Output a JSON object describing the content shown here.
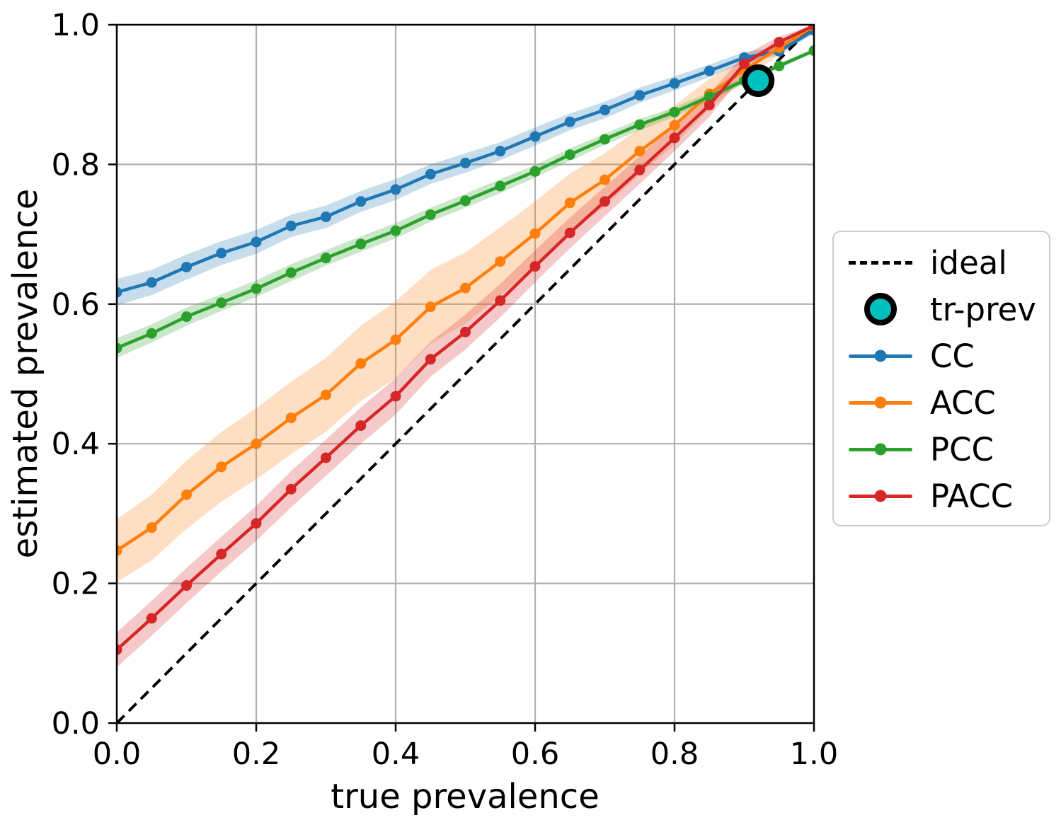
{
  "chart_data": {
    "type": "line",
    "title": "",
    "xlabel": "true prevalence",
    "ylabel": "estimated prevalence",
    "xlim": [
      0,
      1
    ],
    "ylim": [
      0,
      1
    ],
    "grid": true,
    "grid_color": "#b0b0b0",
    "xticks": [
      "0.0",
      "0.2",
      "0.4",
      "0.6",
      "0.8",
      "1.0"
    ],
    "yticks": [
      "0.0",
      "0.2",
      "0.4",
      "0.6",
      "0.8",
      "1.0"
    ],
    "x": [
      0.0,
      0.05,
      0.1,
      0.15,
      0.2,
      0.25,
      0.3,
      0.35,
      0.4,
      0.45,
      0.5,
      0.55,
      0.6,
      0.65,
      0.7,
      0.75,
      0.8,
      0.85,
      0.9,
      0.95,
      1.0
    ],
    "series": [
      {
        "name": "CC",
        "color": "#1f77b4",
        "values": [
          0.617,
          0.631,
          0.653,
          0.673,
          0.689,
          0.712,
          0.725,
          0.747,
          0.764,
          0.786,
          0.802,
          0.819,
          0.84,
          0.861,
          0.878,
          0.899,
          0.916,
          0.934,
          0.953,
          0.962,
          0.992
        ],
        "band": [
          0.019,
          0.018,
          0.018,
          0.017,
          0.017,
          0.016,
          0.016,
          0.015,
          0.015,
          0.014,
          0.014,
          0.013,
          0.013,
          0.012,
          0.012,
          0.011,
          0.01,
          0.009,
          0.008,
          0.006,
          0.004
        ]
      },
      {
        "name": "ACC",
        "color": "#ff7f0e",
        "values": [
          0.247,
          0.28,
          0.327,
          0.367,
          0.4,
          0.437,
          0.47,
          0.515,
          0.549,
          0.596,
          0.623,
          0.661,
          0.701,
          0.745,
          0.778,
          0.819,
          0.856,
          0.901,
          0.935,
          0.967,
          0.998
        ],
        "band": [
          0.045,
          0.047,
          0.049,
          0.05,
          0.051,
          0.052,
          0.053,
          0.054,
          0.055,
          0.053,
          0.051,
          0.049,
          0.046,
          0.042,
          0.038,
          0.033,
          0.028,
          0.022,
          0.015,
          0.009,
          0.003
        ]
      },
      {
        "name": "PCC",
        "color": "#2ca02c",
        "values": [
          0.537,
          0.558,
          0.582,
          0.602,
          0.622,
          0.645,
          0.666,
          0.686,
          0.705,
          0.728,
          0.748,
          0.769,
          0.79,
          0.814,
          0.836,
          0.857,
          0.875,
          0.897,
          0.92,
          0.941,
          0.963
        ],
        "band": [
          0.014,
          0.013,
          0.013,
          0.012,
          0.012,
          0.012,
          0.011,
          0.011,
          0.011,
          0.01,
          0.01,
          0.01,
          0.009,
          0.009,
          0.008,
          0.008,
          0.007,
          0.006,
          0.005,
          0.004,
          0.003
        ]
      },
      {
        "name": "PACC",
        "color": "#d62728",
        "values": [
          0.105,
          0.15,
          0.197,
          0.242,
          0.286,
          0.335,
          0.38,
          0.426,
          0.468,
          0.521,
          0.56,
          0.605,
          0.654,
          0.702,
          0.747,
          0.792,
          0.838,
          0.885,
          0.944,
          0.975,
          0.999
        ],
        "band": [
          0.025,
          0.025,
          0.025,
          0.025,
          0.025,
          0.026,
          0.026,
          0.026,
          0.026,
          0.025,
          0.025,
          0.024,
          0.023,
          0.022,
          0.021,
          0.02,
          0.019,
          0.017,
          0.013,
          0.008,
          0.003
        ]
      }
    ],
    "ideal": {
      "label": "ideal",
      "color": "#000000",
      "style": "dashed",
      "from": [
        0,
        0
      ],
      "to": [
        1,
        1
      ]
    },
    "tr_prev": {
      "label": "tr-prev",
      "x": 0.92,
      "y": 0.92,
      "fill": "#00bfbf",
      "edge": "#000000"
    },
    "legend": {
      "position": "right",
      "items": [
        {
          "label": "ideal",
          "glyph": "dashed-line",
          "color": "#000000"
        },
        {
          "label": "tr-prev",
          "glyph": "circle",
          "color": "#00bfbf"
        },
        {
          "label": "CC",
          "glyph": "line-dot",
          "color": "#1f77b4"
        },
        {
          "label": "ACC",
          "glyph": "line-dot",
          "color": "#ff7f0e"
        },
        {
          "label": "PCC",
          "glyph": "line-dot",
          "color": "#2ca02c"
        },
        {
          "label": "PACC",
          "glyph": "line-dot",
          "color": "#d62728"
        }
      ]
    }
  }
}
